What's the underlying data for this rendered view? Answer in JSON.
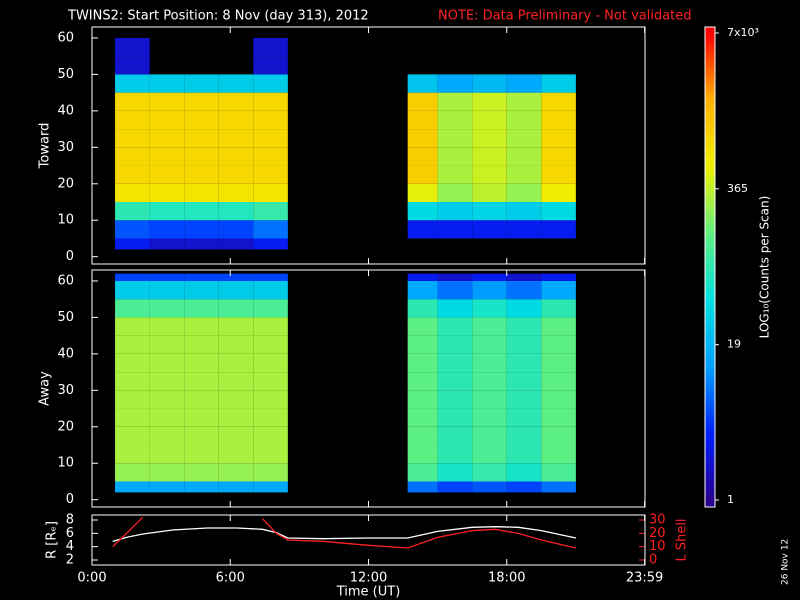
{
  "header": {
    "title": "TWINS2: Start Position:  8 Nov (day 313), 2012",
    "note": "NOTE: Data Preliminary - Not validated"
  },
  "date_stamp": "26 Nov 12",
  "colorbar": {
    "label": "LOG₁₀(Counts per Scan)",
    "lim": [
      1,
      7000
    ],
    "log": true,
    "ticks": [
      1,
      19,
      365,
      {
        "value": 7000,
        "label": "7x10³"
      }
    ],
    "colorscale": [
      "#2a0090",
      "#0020ff",
      "#00a0ff",
      "#00e0e0",
      "#60f080",
      "#f0f000",
      "#ffb000",
      "#ff0000"
    ]
  },
  "chart_data": [
    {
      "type": "heatmap",
      "y_label": "Toward",
      "xlim": [
        0,
        24
      ],
      "xticks": [
        0,
        6,
        12,
        18,
        23.983
      ],
      "ylim": [
        -2,
        63
      ],
      "yticks": [
        0,
        10,
        20,
        30,
        40,
        50,
        60
      ],
      "x_bins": [
        1,
        2.5,
        4,
        5.5,
        7,
        8.5,
        13.7,
        15,
        16.5,
        18,
        19.5,
        21
      ],
      "y_bins": [
        2,
        5,
        10,
        15,
        20,
        25,
        30,
        35,
        40,
        45,
        50,
        55,
        60
      ],
      "values": [
        [
          3,
          2,
          2,
          2,
          3,
          null,
          null,
          null,
          null,
          null,
          null
        ],
        [
          6,
          5,
          5,
          5,
          8,
          null,
          3,
          3,
          3,
          3,
          3
        ],
        [
          80,
          70,
          70,
          70,
          90,
          null,
          40,
          30,
          35,
          30,
          40
        ],
        [
          700,
          700,
          700,
          700,
          700,
          null,
          500,
          250,
          350,
          250,
          600
        ],
        [
          900,
          900,
          900,
          900,
          900,
          null,
          1100,
          300,
          400,
          300,
          900
        ],
        [
          900,
          900,
          900,
          900,
          900,
          null,
          1100,
          300,
          400,
          300,
          900
        ],
        [
          900,
          900,
          900,
          900,
          900,
          null,
          1100,
          300,
          400,
          300,
          900
        ],
        [
          900,
          900,
          900,
          900,
          900,
          null,
          1100,
          300,
          400,
          300,
          900
        ],
        [
          900,
          900,
          900,
          900,
          900,
          null,
          1100,
          300,
          400,
          300,
          900
        ],
        [
          30,
          30,
          30,
          30,
          30,
          null,
          25,
          15,
          20,
          15,
          30
        ],
        [
          2,
          null,
          null,
          null,
          2,
          null,
          null,
          null,
          null,
          null,
          null
        ],
        [
          2,
          null,
          null,
          null,
          2,
          null,
          null,
          null,
          null,
          null,
          null
        ]
      ]
    },
    {
      "type": "heatmap",
      "y_label": "Away",
      "xlim": [
        0,
        24
      ],
      "xticks": [
        0,
        6,
        12,
        18,
        23.983
      ],
      "ylim": [
        -2,
        63
      ],
      "yticks": [
        0,
        10,
        20,
        30,
        40,
        50,
        60
      ],
      "x_bins": [
        1,
        2.5,
        4,
        5.5,
        7,
        8.5,
        13.7,
        15,
        16.5,
        18,
        19.5,
        21
      ],
      "y_bins": [
        2,
        5,
        10,
        15,
        20,
        25,
        30,
        35,
        40,
        45,
        50,
        55,
        60,
        62
      ],
      "values": [
        [
          15,
          15,
          15,
          15,
          15,
          null,
          8,
          5,
          6,
          5,
          8
        ],
        [
          250,
          250,
          250,
          250,
          250,
          null,
          120,
          60,
          90,
          60,
          120
        ],
        [
          300,
          300,
          300,
          300,
          300,
          null,
          150,
          80,
          120,
          80,
          150
        ],
        [
          300,
          300,
          300,
          300,
          300,
          null,
          150,
          80,
          120,
          80,
          150
        ],
        [
          300,
          300,
          300,
          300,
          300,
          null,
          150,
          80,
          120,
          80,
          150
        ],
        [
          300,
          300,
          300,
          300,
          300,
          null,
          150,
          80,
          120,
          80,
          150
        ],
        [
          300,
          300,
          300,
          300,
          300,
          null,
          150,
          80,
          120,
          80,
          150
        ],
        [
          300,
          300,
          300,
          300,
          300,
          null,
          150,
          80,
          120,
          80,
          150
        ],
        [
          300,
          300,
          300,
          300,
          300,
          null,
          150,
          80,
          120,
          80,
          150
        ],
        [
          300,
          300,
          300,
          300,
          300,
          null,
          150,
          80,
          120,
          80,
          150
        ],
        [
          120,
          120,
          120,
          120,
          120,
          null,
          80,
          40,
          60,
          40,
          80
        ],
        [
          30,
          30,
          30,
          30,
          30,
          null,
          15,
          8,
          12,
          8,
          15
        ],
        [
          5,
          5,
          5,
          5,
          5,
          null,
          3,
          2,
          3,
          2,
          3
        ]
      ]
    },
    {
      "type": "line",
      "x_label": "Time (UT)",
      "y_label": "R [Rₑ]",
      "y2_label": "L Shell",
      "xlim": [
        0,
        24
      ],
      "xticks": [
        {
          "value": 0,
          "label": "0:00"
        },
        {
          "value": 6,
          "label": "6:00"
        },
        {
          "value": 12,
          "label": "12:00"
        },
        {
          "value": 18,
          "label": "18:00"
        },
        {
          "value": 23.983,
          "label": "23:59"
        }
      ],
      "ylim": [
        1.25,
        8.75
      ],
      "yticks": [
        2,
        4,
        6,
        8
      ],
      "y2lim": [
        -3.75,
        33.75
      ],
      "y2ticks": [
        0,
        10,
        20,
        30
      ],
      "x": [
        0.9,
        1.5,
        2.2,
        3.5,
        5,
        6.3,
        7.4,
        8.0,
        8.5,
        10,
        12,
        13.7,
        15,
        16.5,
        17.5,
        18.5,
        19.5,
        21
      ],
      "series": [
        {
          "name": "R",
          "color": "#ffffff",
          "values": [
            4.8,
            5.4,
            5.9,
            6.5,
            6.8,
            6.8,
            6.6,
            6.1,
            5.3,
            5.2,
            5.3,
            5.3,
            6.3,
            6.9,
            7.0,
            6.9,
            6.4,
            5.3
          ]
        },
        {
          "name": "L Shell",
          "color": "#ff2020",
          "axis": "y2",
          "values": [
            10,
            20,
            32,
            null,
            null,
            null,
            31,
            20,
            15,
            14,
            11,
            9,
            17,
            22,
            23,
            20,
            15,
            9
          ]
        }
      ]
    }
  ]
}
